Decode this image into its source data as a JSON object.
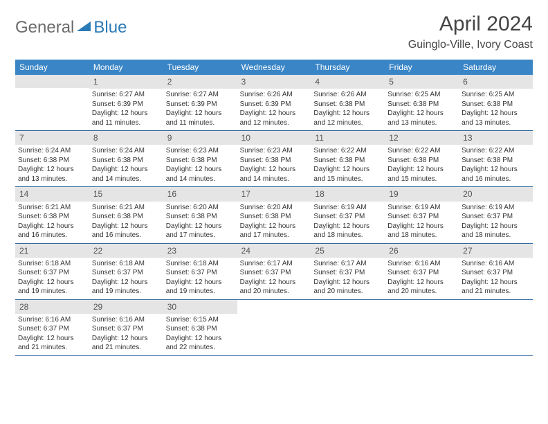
{
  "logo": {
    "text1": "General",
    "text2": "Blue"
  },
  "title": "April 2024",
  "location": "Guinglo-Ville, Ivory Coast",
  "colors": {
    "header_bg": "#3a85c6",
    "header_text": "#ffffff",
    "daynum_bg": "#e5e5e5",
    "border": "#3069a0",
    "logo_gray": "#6b6b6b",
    "logo_blue": "#2a7ab8"
  },
  "weekdays": [
    "Sunday",
    "Monday",
    "Tuesday",
    "Wednesday",
    "Thursday",
    "Friday",
    "Saturday"
  ],
  "weeks": [
    [
      {
        "empty": true
      },
      {
        "n": "1",
        "sunrise": "Sunrise: 6:27 AM",
        "sunset": "Sunset: 6:39 PM",
        "daylight": "Daylight: 12 hours and 11 minutes."
      },
      {
        "n": "2",
        "sunrise": "Sunrise: 6:27 AM",
        "sunset": "Sunset: 6:39 PM",
        "daylight": "Daylight: 12 hours and 11 minutes."
      },
      {
        "n": "3",
        "sunrise": "Sunrise: 6:26 AM",
        "sunset": "Sunset: 6:39 PM",
        "daylight": "Daylight: 12 hours and 12 minutes."
      },
      {
        "n": "4",
        "sunrise": "Sunrise: 6:26 AM",
        "sunset": "Sunset: 6:38 PM",
        "daylight": "Daylight: 12 hours and 12 minutes."
      },
      {
        "n": "5",
        "sunrise": "Sunrise: 6:25 AM",
        "sunset": "Sunset: 6:38 PM",
        "daylight": "Daylight: 12 hours and 13 minutes."
      },
      {
        "n": "6",
        "sunrise": "Sunrise: 6:25 AM",
        "sunset": "Sunset: 6:38 PM",
        "daylight": "Daylight: 12 hours and 13 minutes."
      }
    ],
    [
      {
        "n": "7",
        "sunrise": "Sunrise: 6:24 AM",
        "sunset": "Sunset: 6:38 PM",
        "daylight": "Daylight: 12 hours and 13 minutes."
      },
      {
        "n": "8",
        "sunrise": "Sunrise: 6:24 AM",
        "sunset": "Sunset: 6:38 PM",
        "daylight": "Daylight: 12 hours and 14 minutes."
      },
      {
        "n": "9",
        "sunrise": "Sunrise: 6:23 AM",
        "sunset": "Sunset: 6:38 PM",
        "daylight": "Daylight: 12 hours and 14 minutes."
      },
      {
        "n": "10",
        "sunrise": "Sunrise: 6:23 AM",
        "sunset": "Sunset: 6:38 PM",
        "daylight": "Daylight: 12 hours and 14 minutes."
      },
      {
        "n": "11",
        "sunrise": "Sunrise: 6:22 AM",
        "sunset": "Sunset: 6:38 PM",
        "daylight": "Daylight: 12 hours and 15 minutes."
      },
      {
        "n": "12",
        "sunrise": "Sunrise: 6:22 AM",
        "sunset": "Sunset: 6:38 PM",
        "daylight": "Daylight: 12 hours and 15 minutes."
      },
      {
        "n": "13",
        "sunrise": "Sunrise: 6:22 AM",
        "sunset": "Sunset: 6:38 PM",
        "daylight": "Daylight: 12 hours and 16 minutes."
      }
    ],
    [
      {
        "n": "14",
        "sunrise": "Sunrise: 6:21 AM",
        "sunset": "Sunset: 6:38 PM",
        "daylight": "Daylight: 12 hours and 16 minutes."
      },
      {
        "n": "15",
        "sunrise": "Sunrise: 6:21 AM",
        "sunset": "Sunset: 6:38 PM",
        "daylight": "Daylight: 12 hours and 16 minutes."
      },
      {
        "n": "16",
        "sunrise": "Sunrise: 6:20 AM",
        "sunset": "Sunset: 6:38 PM",
        "daylight": "Daylight: 12 hours and 17 minutes."
      },
      {
        "n": "17",
        "sunrise": "Sunrise: 6:20 AM",
        "sunset": "Sunset: 6:38 PM",
        "daylight": "Daylight: 12 hours and 17 minutes."
      },
      {
        "n": "18",
        "sunrise": "Sunrise: 6:19 AM",
        "sunset": "Sunset: 6:37 PM",
        "daylight": "Daylight: 12 hours and 18 minutes."
      },
      {
        "n": "19",
        "sunrise": "Sunrise: 6:19 AM",
        "sunset": "Sunset: 6:37 PM",
        "daylight": "Daylight: 12 hours and 18 minutes."
      },
      {
        "n": "20",
        "sunrise": "Sunrise: 6:19 AM",
        "sunset": "Sunset: 6:37 PM",
        "daylight": "Daylight: 12 hours and 18 minutes."
      }
    ],
    [
      {
        "n": "21",
        "sunrise": "Sunrise: 6:18 AM",
        "sunset": "Sunset: 6:37 PM",
        "daylight": "Daylight: 12 hours and 19 minutes."
      },
      {
        "n": "22",
        "sunrise": "Sunrise: 6:18 AM",
        "sunset": "Sunset: 6:37 PM",
        "daylight": "Daylight: 12 hours and 19 minutes."
      },
      {
        "n": "23",
        "sunrise": "Sunrise: 6:18 AM",
        "sunset": "Sunset: 6:37 PM",
        "daylight": "Daylight: 12 hours and 19 minutes."
      },
      {
        "n": "24",
        "sunrise": "Sunrise: 6:17 AM",
        "sunset": "Sunset: 6:37 PM",
        "daylight": "Daylight: 12 hours and 20 minutes."
      },
      {
        "n": "25",
        "sunrise": "Sunrise: 6:17 AM",
        "sunset": "Sunset: 6:37 PM",
        "daylight": "Daylight: 12 hours and 20 minutes."
      },
      {
        "n": "26",
        "sunrise": "Sunrise: 6:16 AM",
        "sunset": "Sunset: 6:37 PM",
        "daylight": "Daylight: 12 hours and 20 minutes."
      },
      {
        "n": "27",
        "sunrise": "Sunrise: 6:16 AM",
        "sunset": "Sunset: 6:37 PM",
        "daylight": "Daylight: 12 hours and 21 minutes."
      }
    ],
    [
      {
        "n": "28",
        "sunrise": "Sunrise: 6:16 AM",
        "sunset": "Sunset: 6:37 PM",
        "daylight": "Daylight: 12 hours and 21 minutes."
      },
      {
        "n": "29",
        "sunrise": "Sunrise: 6:16 AM",
        "sunset": "Sunset: 6:37 PM",
        "daylight": "Daylight: 12 hours and 21 minutes."
      },
      {
        "n": "30",
        "sunrise": "Sunrise: 6:15 AM",
        "sunset": "Sunset: 6:38 PM",
        "daylight": "Daylight: 12 hours and 22 minutes."
      },
      {
        "empty": true,
        "trailing": true
      },
      {
        "empty": true,
        "trailing": true
      },
      {
        "empty": true,
        "trailing": true
      },
      {
        "empty": true,
        "trailing": true
      }
    ]
  ]
}
